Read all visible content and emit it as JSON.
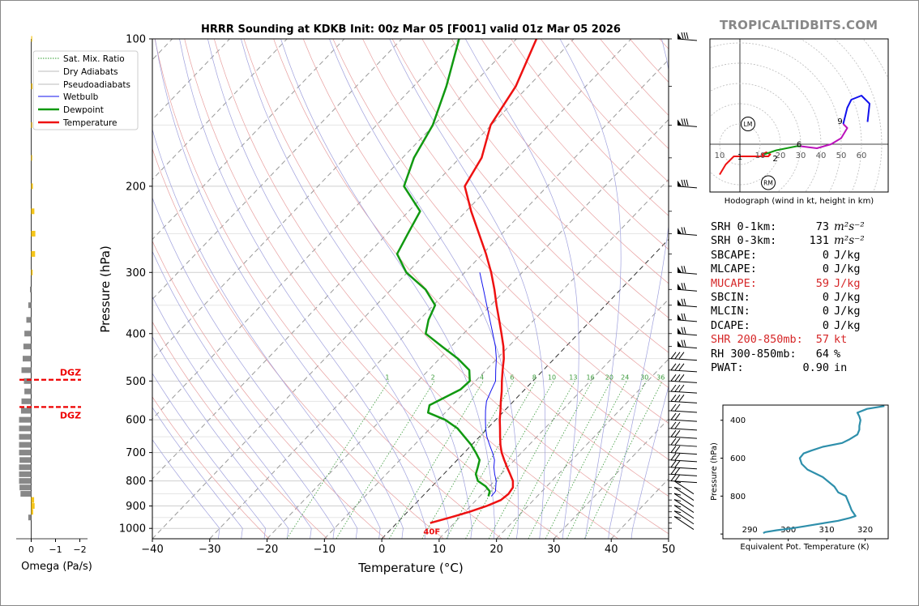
{
  "title": "HRRR Sounding at KDKB Init: 00z Mar 05 [F001] valid 01z Mar 05 2026",
  "brand": "TROPICALTIDBITS.COM",
  "skewt": {
    "xlabel": "Temperature (°C)",
    "ylabel": "Pressure (hPa)",
    "xticks": [
      -40,
      -30,
      -20,
      -10,
      0,
      10,
      20,
      30,
      40,
      50
    ],
    "yticks": [
      100,
      200,
      300,
      400,
      500,
      600,
      700,
      800,
      900,
      1000
    ],
    "legend": [
      "Sat. Mix. Ratio",
      "Dry Adiabats",
      "Pseudoadiabats",
      "Wetbulb",
      "Dewpoint",
      "Temperature"
    ],
    "mixing_ratio_labels": [
      "1",
      "2",
      "4",
      "6",
      "8",
      "10",
      "13",
      "16",
      "20",
      "24",
      "30",
      "36"
    ],
    "surface_label": "40F",
    "dgz_label": "DGZ"
  },
  "omega": {
    "xlabel": "Omega (Pa/s)",
    "xticks": [
      "0",
      "−1",
      "−2"
    ]
  },
  "hodograph": {
    "caption": "Hodograph (wind in kt, height in km)",
    "ring_labels": [
      "10",
      "10",
      "20",
      "30",
      "40",
      "50",
      "60"
    ],
    "height_labels": [
      "1",
      "2",
      "3",
      "6",
      "9"
    ],
    "markers": [
      "LM",
      "RM"
    ]
  },
  "theta_e": {
    "xlabel": "Equivalent Pot. Temperature (K)",
    "ylabel": "Pressure (hPa)",
    "xticks": [
      "290",
      "300",
      "310",
      "320"
    ],
    "yticks": [
      "400",
      "600",
      "800"
    ]
  },
  "params": [
    {
      "label": "SRH 0-1km:",
      "value": "73",
      "unit": "m²s⁻²",
      "highlight": false
    },
    {
      "label": "SRH 0-3km:",
      "value": "131",
      "unit": "m²s⁻²",
      "highlight": false
    },
    {
      "label": "SBCAPE:",
      "value": "0",
      "unit": "J/kg",
      "highlight": false
    },
    {
      "label": "MLCAPE:",
      "value": "0",
      "unit": "J/kg",
      "highlight": false
    },
    {
      "label": "MUCAPE:",
      "value": "59",
      "unit": "J/kg",
      "highlight": true
    },
    {
      "label": "SBCIN:",
      "value": "0",
      "unit": "J/kg",
      "highlight": false
    },
    {
      "label": "MLCIN:",
      "value": "0",
      "unit": "J/kg",
      "highlight": false
    },
    {
      "label": "DCAPE:",
      "value": "0",
      "unit": "J/kg",
      "highlight": false
    },
    {
      "label": "SHR 200-850mb:",
      "value": "57",
      "unit": "kt",
      "highlight": true
    },
    {
      "label": "RH 300-850mb:",
      "value": "64",
      "unit": "%",
      "highlight": false
    },
    {
      "label": "PWAT:",
      "value": "0.90",
      "unit": "in",
      "highlight": false
    }
  ],
  "colors": {
    "temperature": "#ee1111",
    "dewpoint": "#119911",
    "wetbulb": "#1111ee",
    "omega_up": "#f5c518",
    "omega_down": "#888888",
    "highlight": "#d62728",
    "theta_e": "#2e8fab"
  },
  "chart_data": [
    {
      "type": "line",
      "title": "HRRR Sounding at KDKB Init: 00z Mar 05 [F001] valid 01z Mar 05 2026",
      "xlabel": "Temperature (°C)",
      "ylabel": "Pressure (hPa)",
      "xlim": [
        -40,
        50
      ],
      "ylim": [
        1050,
        100
      ],
      "yscale": "log",
      "skew": "skew-T",
      "series": [
        {
          "name": "Temperature",
          "points": [
            [
              975,
              5.8
            ],
            [
              950,
              8.4
            ],
            [
              925,
              10.8
            ],
            [
              900,
              12.8
            ],
            [
              875,
              14.3
            ],
            [
              850,
              14.6
            ],
            [
              825,
              14.3
            ],
            [
              800,
              13.2
            ],
            [
              775,
              11.6
            ],
            [
              750,
              9.9
            ],
            [
              725,
              8.2
            ],
            [
              700,
              6.5
            ],
            [
              675,
              5.0
            ],
            [
              650,
              3.6
            ],
            [
              625,
              2.2
            ],
            [
              600,
              0.7
            ],
            [
              575,
              -0.7
            ],
            [
              550,
              -2.2
            ],
            [
              525,
              -3.7
            ],
            [
              500,
              -5.4
            ],
            [
              475,
              -7.1
            ],
            [
              450,
              -8.8
            ],
            [
              425,
              -10.9
            ],
            [
              400,
              -13.4
            ],
            [
              375,
              -16.1
            ],
            [
              350,
              -19.0
            ],
            [
              325,
              -22.0
            ],
            [
              300,
              -25.4
            ],
            [
              275,
              -29.4
            ],
            [
              250,
              -34.0
            ],
            [
              225,
              -39.1
            ],
            [
              200,
              -44.4
            ],
            [
              175,
              -46.2
            ],
            [
              150,
              -50.1
            ],
            [
              125,
              -52.2
            ],
            [
              100,
              -56.5
            ]
          ]
        },
        {
          "name": "Dewpoint",
          "points": [
            [
              860,
              11.5
            ],
            [
              840,
              10.9
            ],
            [
              820,
              9.3
            ],
            [
              800,
              7.1
            ],
            [
              775,
              5.6
            ],
            [
              750,
              4.8
            ],
            [
              725,
              3.9
            ],
            [
              700,
              2.0
            ],
            [
              675,
              -0.1
            ],
            [
              650,
              -2.6
            ],
            [
              625,
              -5.2
            ],
            [
              600,
              -8.8
            ],
            [
              580,
              -13.0
            ],
            [
              560,
              -14.0
            ],
            [
              540,
              -12.6
            ],
            [
              520,
              -11.2
            ],
            [
              500,
              -11.0
            ],
            [
              475,
              -12.9
            ],
            [
              450,
              -16.8
            ],
            [
              425,
              -21.6
            ],
            [
              400,
              -26.6
            ],
            [
              375,
              -28.4
            ],
            [
              350,
              -29.7
            ],
            [
              325,
              -34.0
            ],
            [
              300,
              -40.2
            ],
            [
              275,
              -44.9
            ],
            [
              250,
              -46.4
            ],
            [
              225,
              -48.0
            ],
            [
              200,
              -55.0
            ],
            [
              175,
              -58.0
            ],
            [
              150,
              -60.2
            ],
            [
              125,
              -64.3
            ],
            [
              100,
              -70.0
            ]
          ]
        },
        {
          "name": "Wetbulb",
          "points": [
            [
              860,
              12.0
            ],
            [
              840,
              11.9
            ],
            [
              820,
              11.1
            ],
            [
              800,
              10.3
            ],
            [
              775,
              8.9
            ],
            [
              750,
              7.6
            ],
            [
              725,
              6.5
            ],
            [
              700,
              4.9
            ],
            [
              675,
              3.1
            ],
            [
              650,
              1.3
            ],
            [
              625,
              -0.3
            ],
            [
              600,
              -1.8
            ],
            [
              575,
              -3.3
            ],
            [
              550,
              -4.7
            ],
            [
              525,
              -5.6
            ],
            [
              500,
              -6.5
            ],
            [
              475,
              -8.3
            ],
            [
              450,
              -10.1
            ],
            [
              425,
              -12.3
            ],
            [
              400,
              -14.9
            ],
            [
              375,
              -17.7
            ],
            [
              350,
              -20.7
            ],
            [
              325,
              -23.9
            ],
            [
              300,
              -27.4
            ]
          ]
        }
      ],
      "surface_temperature_label": "40F",
      "dgz": [
        497,
        565
      ]
    },
    {
      "type": "bar",
      "title": "",
      "xlabel": "Omega (Pa/s)",
      "xlim": [
        0.05,
        -2.1
      ],
      "categories_hpa": [
        100,
        125,
        150,
        175,
        200,
        225,
        250,
        275,
        300,
        325,
        350,
        375,
        400,
        425,
        450,
        475,
        500,
        525,
        550,
        575,
        600,
        625,
        650,
        675,
        700,
        725,
        750,
        775,
        800,
        825,
        850,
        875,
        900,
        925,
        950
      ],
      "values": [
        -0.04,
        -0.05,
        -0.04,
        -0.03,
        -0.07,
        -0.13,
        -0.17,
        -0.16,
        -0.06,
        0.05,
        0.12,
        0.2,
        0.28,
        0.32,
        0.35,
        0.4,
        0.3,
        0.28,
        0.4,
        0.42,
        0.5,
        0.5,
        0.5,
        0.5,
        0.5,
        0.48,
        0.5,
        0.5,
        0.5,
        0.48,
        0.44,
        -0.12,
        -0.14,
        -0.08,
        0.12
      ]
    },
    {
      "type": "line",
      "title": "",
      "xlabel": "Hodograph (wind in kt, height in km)",
      "ylabel": "",
      "xlim": [
        -10,
        73
      ],
      "ylim": [
        -23,
        52
      ],
      "series": [
        {
          "name": "0-1 km",
          "points": [
            [
              -10,
              -15
            ],
            [
              -7,
              -10
            ],
            [
              -3,
              -6
            ],
            [
              0,
              -6
            ]
          ]
        },
        {
          "name": "1-3 km",
          "points": [
            [
              0,
              -6
            ],
            [
              10,
              -6
            ],
            [
              14,
              -6
            ],
            [
              15,
              -5
            ],
            [
              13,
              -4
            ],
            [
              11,
              -5
            ],
            [
              12,
              -6
            ]
          ]
        },
        {
          "name": "3-6 km",
          "points": [
            [
              12,
              -5
            ],
            [
              18,
              -3
            ],
            [
              23,
              -2
            ],
            [
              28,
              -1
            ],
            [
              30,
              -1
            ]
          ]
        },
        {
          "name": "6-9 km",
          "points": [
            [
              30,
              -1
            ],
            [
              38,
              -2
            ],
            [
              45,
              0
            ],
            [
              50,
              3
            ],
            [
              53,
              8
            ],
            [
              51,
              10
            ]
          ]
        },
        {
          "name": "9-12 km",
          "points": [
            [
              51,
              10
            ],
            [
              53,
              18
            ],
            [
              55,
              22
            ],
            [
              60,
              24
            ],
            [
              64,
              20
            ],
            [
              63,
              11
            ]
          ]
        }
      ],
      "markers": {
        "LM": [
          4,
          10
        ],
        "RM": [
          14,
          -19
        ]
      }
    },
    {
      "type": "line",
      "title": "",
      "xlabel": "Equivalent Pot. Temperature (K)",
      "ylabel": "Pressure (hPa)",
      "xlim": [
        283,
        326
      ],
      "ylim": [
        1025,
        320
      ],
      "series": [
        {
          "name": "",
          "points": [
            [
              995,
              293.5
            ],
            [
              990,
              294
            ],
            [
              980,
              297
            ],
            [
              970,
              301
            ],
            [
              960,
              304
            ],
            [
              950,
              307
            ],
            [
              930,
              313
            ],
            [
              915,
              316
            ],
            [
              905,
              317.5
            ],
            [
              875,
              316.5
            ],
            [
              850,
              316
            ],
            [
              825,
              315.5
            ],
            [
              800,
              315
            ],
            [
              780,
              313
            ],
            [
              750,
              312
            ],
            [
              700,
              309
            ],
            [
              660,
              305
            ],
            [
              630,
              303.5
            ],
            [
              600,
              303
            ],
            [
              575,
              304
            ],
            [
              560,
              306
            ],
            [
              540,
              309
            ],
            [
              520,
              314
            ],
            [
              500,
              316
            ],
            [
              475,
              318
            ],
            [
              450,
              318.5
            ],
            [
              430,
              318.5
            ],
            [
              400,
              318.8
            ],
            [
              380,
              318.5
            ],
            [
              360,
              318
            ],
            [
              340,
              320.5
            ],
            [
              325,
              325
            ]
          ]
        }
      ]
    }
  ]
}
